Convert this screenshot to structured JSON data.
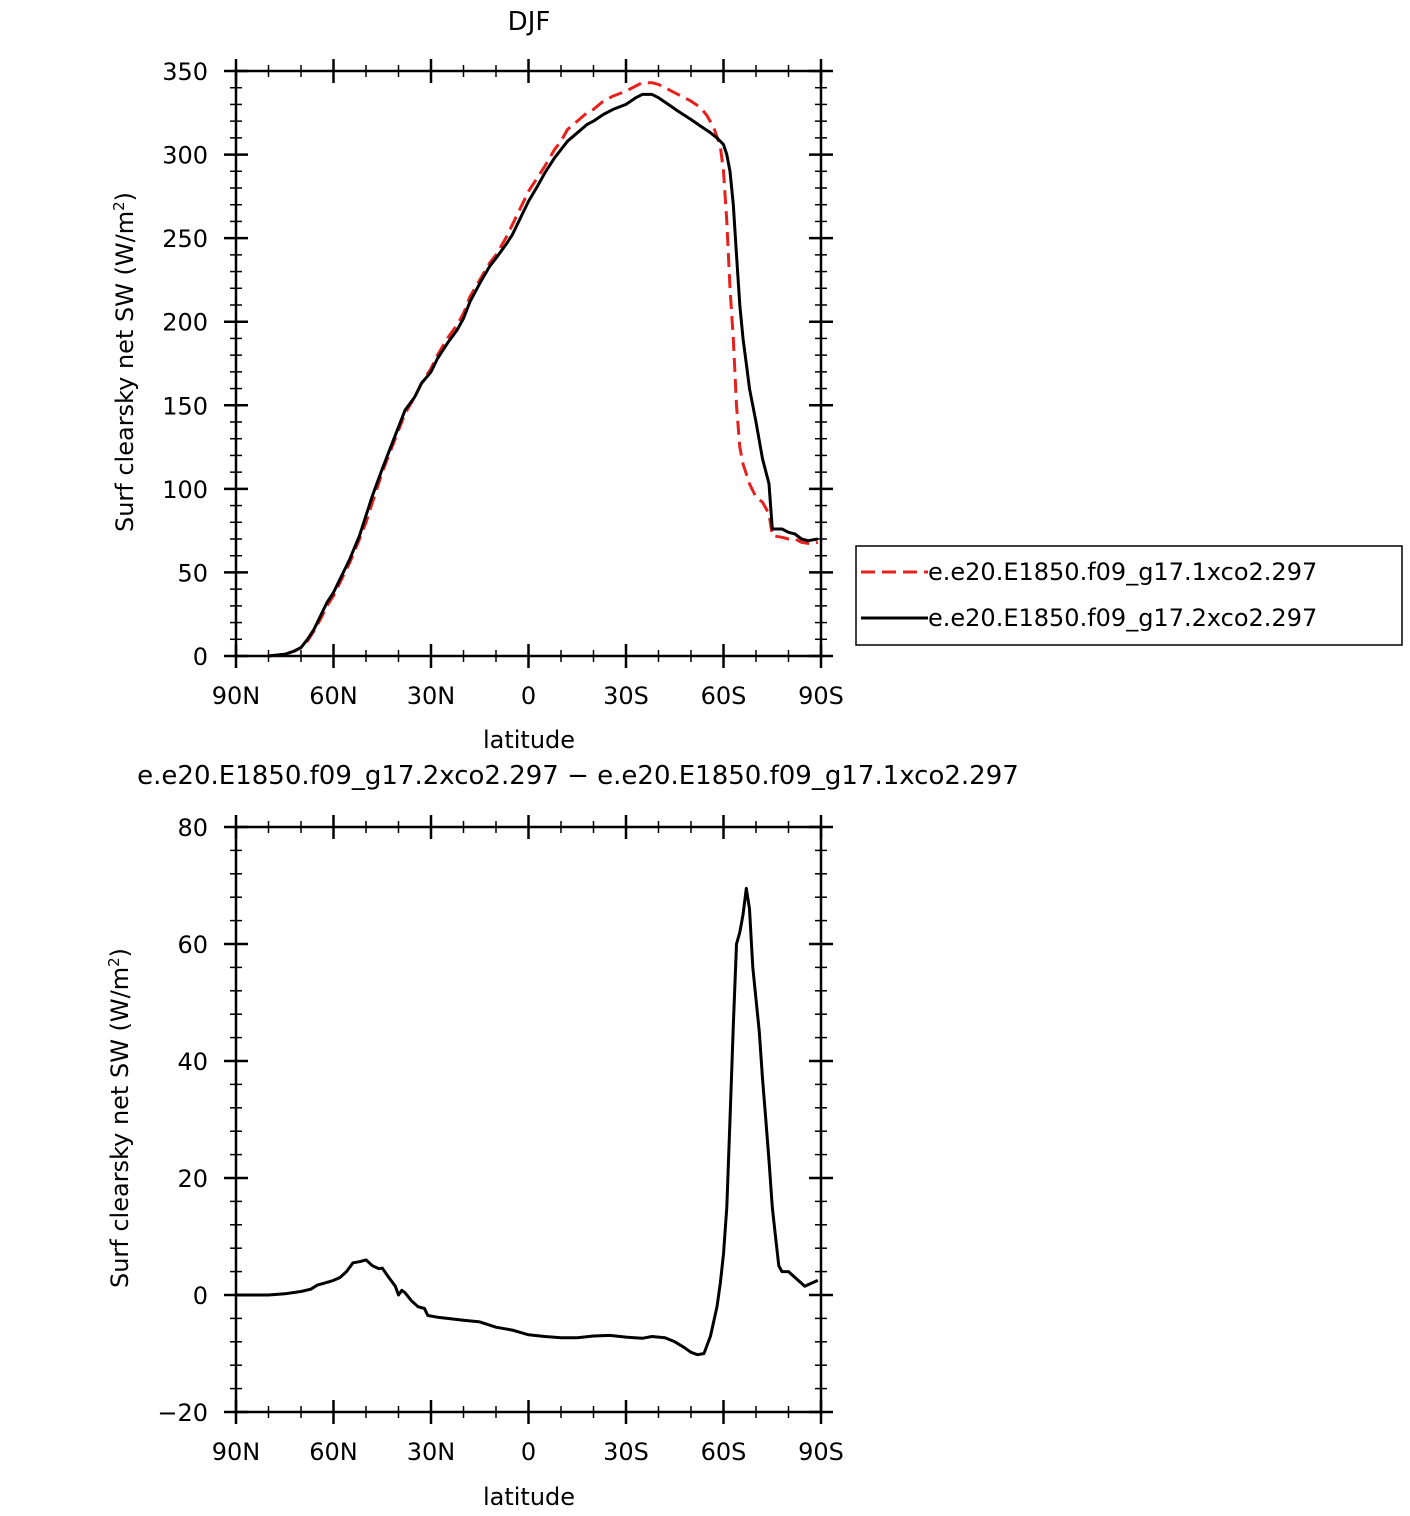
{
  "colors": {
    "series1": "#e8201c",
    "series2": "#000000",
    "frame": "#000000"
  },
  "chart_data": [
    {
      "type": "line",
      "title": "DJF",
      "xlabel": "latitude",
      "ylabel": "Surf clearsky net SW (W/m",
      "ylabel_sup": "2",
      "ylabel_close": ")",
      "xlim": [
        90,
        -90
      ],
      "ylim": [
        0,
        350
      ],
      "x_ticks": [
        90,
        60,
        30,
        0,
        -30,
        -60,
        -90
      ],
      "x_tick_labels": [
        "90N",
        "60N",
        "30N",
        "0",
        "30S",
        "60S",
        "90S"
      ],
      "y_ticks": [
        0,
        50,
        100,
        150,
        200,
        250,
        300,
        350
      ],
      "y_tick_labels": [
        "0",
        "50",
        "100",
        "150",
        "200",
        "250",
        "300",
        "350"
      ],
      "grid": false,
      "legend_position": "right",
      "series": [
        {
          "name": "e.e20.E1850.f09_g17.1xco2.297",
          "style": "dashed",
          "color": "#e8201c",
          "points": [
            [
              80,
              0
            ],
            [
              75,
              1
            ],
            [
              72,
              3
            ],
            [
              70,
              5
            ],
            [
              68,
              9
            ],
            [
              66,
              15
            ],
            [
              64,
              22
            ],
            [
              62,
              30
            ],
            [
              60,
              36
            ],
            [
              58,
              44
            ],
            [
              55,
              56
            ],
            [
              52,
              70
            ],
            [
              50,
              80
            ],
            [
              48,
              92
            ],
            [
              45,
              110
            ],
            [
              42,
              125
            ],
            [
              40,
              135
            ],
            [
              38,
              145
            ],
            [
              35,
              155
            ],
            [
              33,
              163
            ],
            [
              30,
              172
            ],
            [
              28,
              180
            ],
            [
              25,
              190
            ],
            [
              22,
              198
            ],
            [
              20,
              205
            ],
            [
              18,
              215
            ],
            [
              15,
              225
            ],
            [
              12,
              235
            ],
            [
              10,
              240
            ],
            [
              7,
              250
            ],
            [
              5,
              258
            ],
            [
              3,
              266
            ],
            [
              0,
              278
            ],
            [
              -3,
              287
            ],
            [
              -5,
              293
            ],
            [
              -8,
              303
            ],
            [
              -10,
              308
            ],
            [
              -12,
              315
            ],
            [
              -15,
              320
            ],
            [
              -18,
              325
            ],
            [
              -20,
              327
            ],
            [
              -23,
              332
            ],
            [
              -26,
              335
            ],
            [
              -30,
              338
            ],
            [
              -33,
              341
            ],
            [
              -35,
              343
            ],
            [
              -38,
              343
            ],
            [
              -40,
              342
            ],
            [
              -43,
              339
            ],
            [
              -46,
              336
            ],
            [
              -50,
              332
            ],
            [
              -53,
              328
            ],
            [
              -55,
              323
            ],
            [
              -57,
              316
            ],
            [
              -59,
              305
            ],
            [
              -60,
              290
            ],
            [
              -61,
              260
            ],
            [
              -62,
              220
            ],
            [
              -63,
              190
            ],
            [
              -64,
              150
            ],
            [
              -65,
              125
            ],
            [
              -66,
              115
            ],
            [
              -68,
              103
            ],
            [
              -70,
              95
            ],
            [
              -72,
              92
            ],
            [
              -74,
              85
            ],
            [
              -75,
              72
            ],
            [
              -78,
              71
            ],
            [
              -80,
              70
            ],
            [
              -82,
              70
            ],
            [
              -84,
              68
            ],
            [
              -87,
              67
            ],
            [
              -89,
              68
            ]
          ]
        },
        {
          "name": "e.e20.E1850.f09_g17.2xco2.297",
          "style": "solid",
          "color": "#000000",
          "points": [
            [
              80,
              0
            ],
            [
              75,
              1
            ],
            [
              72,
              3
            ],
            [
              70,
              5
            ],
            [
              68,
              10
            ],
            [
              66,
              16
            ],
            [
              64,
              24
            ],
            [
              62,
              32
            ],
            [
              60,
              38
            ],
            [
              58,
              46
            ],
            [
              55,
              58
            ],
            [
              52,
              72
            ],
            [
              50,
              84
            ],
            [
              48,
              96
            ],
            [
              45,
              112
            ],
            [
              42,
              127
            ],
            [
              40,
              137
            ],
            [
              38,
              147
            ],
            [
              35,
              155
            ],
            [
              33,
              163
            ],
            [
              30,
              170
            ],
            [
              28,
              178
            ],
            [
              25,
              187
            ],
            [
              22,
              195
            ],
            [
              20,
              202
            ],
            [
              18,
              212
            ],
            [
              15,
              223
            ],
            [
              12,
              233
            ],
            [
              10,
              238
            ],
            [
              7,
              246
            ],
            [
              5,
              252
            ],
            [
              3,
              260
            ],
            [
              0,
              272
            ],
            [
              -3,
              282
            ],
            [
              -5,
              289
            ],
            [
              -8,
              298
            ],
            [
              -10,
              303
            ],
            [
              -12,
              308
            ],
            [
              -15,
              313
            ],
            [
              -18,
              318
            ],
            [
              -20,
              320
            ],
            [
              -23,
              324
            ],
            [
              -26,
              327
            ],
            [
              -30,
              330
            ],
            [
              -33,
              334
            ],
            [
              -35,
              336
            ],
            [
              -38,
              336
            ],
            [
              -40,
              334
            ],
            [
              -43,
              330
            ],
            [
              -46,
              326
            ],
            [
              -50,
              321
            ],
            [
              -53,
              317
            ],
            [
              -56,
              313
            ],
            [
              -58,
              310
            ],
            [
              -60,
              306
            ],
            [
              -61,
              300
            ],
            [
              -62,
              290
            ],
            [
              -63,
              270
            ],
            [
              -64,
              240
            ],
            [
              -65,
              210
            ],
            [
              -66,
              190
            ],
            [
              -67,
              175
            ],
            [
              -68,
              160
            ],
            [
              -70,
              140
            ],
            [
              -72,
              118
            ],
            [
              -74,
              103
            ],
            [
              -75,
              76
            ],
            [
              -78,
              76
            ],
            [
              -80,
              74
            ],
            [
              -82,
              73
            ],
            [
              -84,
              70
            ],
            [
              -86,
              69
            ],
            [
              -89,
              70
            ]
          ]
        }
      ]
    },
    {
      "type": "line",
      "title": "e.e20.E1850.f09_g17.2xco2.297 − e.e20.E1850.f09_g17.1xco2.297",
      "xlabel": "latitude",
      "ylabel": "Surf clearsky net SW (W/m",
      "ylabel_sup": "2",
      "ylabel_close": ")",
      "xlim": [
        90,
        -90
      ],
      "ylim": [
        -20,
        80
      ],
      "x_ticks": [
        90,
        60,
        30,
        0,
        -30,
        -60,
        -90
      ],
      "x_tick_labels": [
        "90N",
        "60N",
        "30N",
        "0",
        "30S",
        "60S",
        "90S"
      ],
      "y_ticks": [
        -20,
        0,
        20,
        40,
        60,
        80
      ],
      "y_tick_labels": [
        "−20",
        "0",
        "20",
        "40",
        "60",
        "80"
      ],
      "grid": false,
      "series": [
        {
          "style": "solid",
          "color": "#000000",
          "points": [
            [
              90,
              0
            ],
            [
              80,
              0
            ],
            [
              75,
              0.2
            ],
            [
              70,
              0.6
            ],
            [
              67,
              1
            ],
            [
              65,
              1.7
            ],
            [
              63,
              2
            ],
            [
              60,
              2.5
            ],
            [
              58,
              3
            ],
            [
              56,
              4
            ],
            [
              54,
              5.5
            ],
            [
              52,
              5.7
            ],
            [
              50,
              6
            ],
            [
              48,
              5
            ],
            [
              46,
              4.5
            ],
            [
              45,
              4.6
            ],
            [
              43,
              3
            ],
            [
              41,
              1.5
            ],
            [
              40,
              0
            ],
            [
              39,
              0.8
            ],
            [
              38,
              0.4
            ],
            [
              36,
              -1
            ],
            [
              34,
              -2
            ],
            [
              32,
              -2.3
            ],
            [
              31,
              -3.5
            ],
            [
              28,
              -3.8
            ],
            [
              25,
              -4
            ],
            [
              20,
              -4.3
            ],
            [
              15,
              -4.6
            ],
            [
              10,
              -5.5
            ],
            [
              5,
              -6
            ],
            [
              0,
              -6.8
            ],
            [
              -5,
              -7.1
            ],
            [
              -10,
              -7.3
            ],
            [
              -15,
              -7.3
            ],
            [
              -20,
              -7
            ],
            [
              -25,
              -6.9
            ],
            [
              -30,
              -7.2
            ],
            [
              -35,
              -7.4
            ],
            [
              -38,
              -7.1
            ],
            [
              -42,
              -7.3
            ],
            [
              -45,
              -8
            ],
            [
              -48,
              -9
            ],
            [
              -50,
              -9.8
            ],
            [
              -52,
              -10.2
            ],
            [
              -54,
              -10
            ],
            [
              -56,
              -7
            ],
            [
              -58,
              -2
            ],
            [
              -59,
              2
            ],
            [
              -60,
              7
            ],
            [
              -61,
              15
            ],
            [
              -62,
              30
            ],
            [
              -63,
              46
            ],
            [
              -64,
              60
            ],
            [
              -65,
              62
            ],
            [
              -66,
              65
            ],
            [
              -67,
              69.5
            ],
            [
              -68,
              66
            ],
            [
              -69,
              56
            ],
            [
              -71,
              45
            ],
            [
              -72,
              37
            ],
            [
              -73,
              30
            ],
            [
              -74,
              23
            ],
            [
              -75,
              15
            ],
            [
              -76,
              10
            ],
            [
              -77,
              5
            ],
            [
              -78,
              4
            ],
            [
              -80,
              4
            ],
            [
              -82,
              3
            ],
            [
              -84,
              2
            ],
            [
              -85,
              1.5
            ],
            [
              -87,
              2
            ],
            [
              -89,
              2.5
            ]
          ]
        }
      ]
    }
  ]
}
